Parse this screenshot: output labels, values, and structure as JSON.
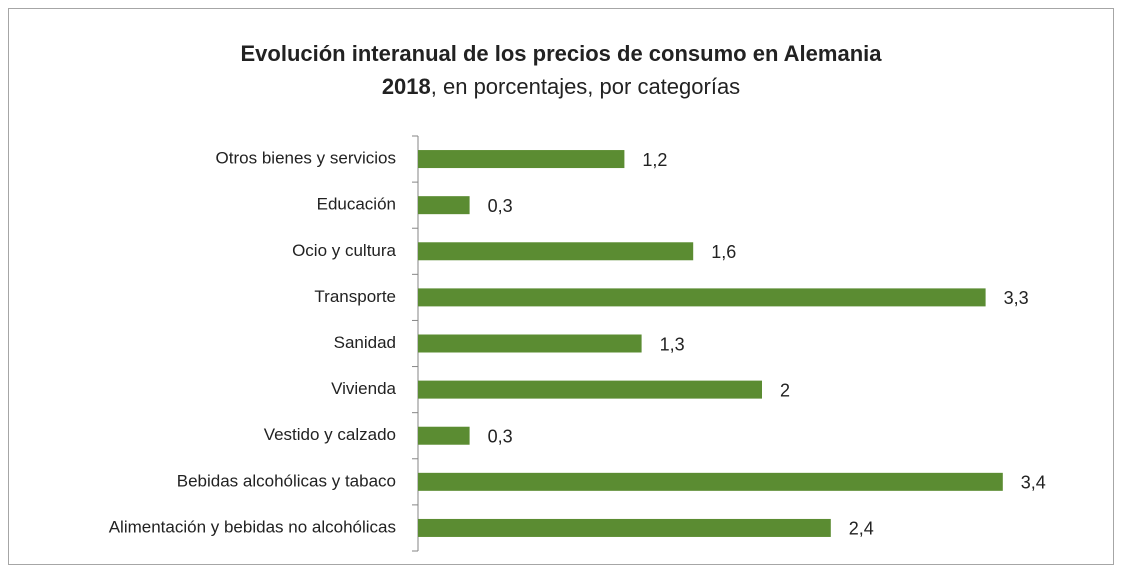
{
  "chart_data": {
    "type": "bar",
    "orientation": "horizontal",
    "title": "Evolución interanual de los precios de consumo en Alemania",
    "subtitle": {
      "bold": "2018",
      "rest": ", en porcentajes, por categorías"
    },
    "categories": [
      "Otros bienes y servicios",
      "Educación",
      "Ocio y cultura",
      "Transporte",
      "Sanidad",
      "Vivienda",
      "Vestido y calzado",
      "Bebidas alcohólicas y tabaco",
      "Alimentación y bebidas no alcohólicas"
    ],
    "values": [
      1.2,
      0.3,
      1.6,
      3.3,
      1.3,
      2,
      0.3,
      3.4,
      2.4
    ],
    "value_labels": [
      "1,2",
      "0,3",
      "1,6",
      "3,3",
      "1,3",
      "2",
      "0,3",
      "3,4",
      "2,4"
    ],
    "color": "#5b8c32",
    "xlim": [
      0,
      3.5
    ]
  }
}
